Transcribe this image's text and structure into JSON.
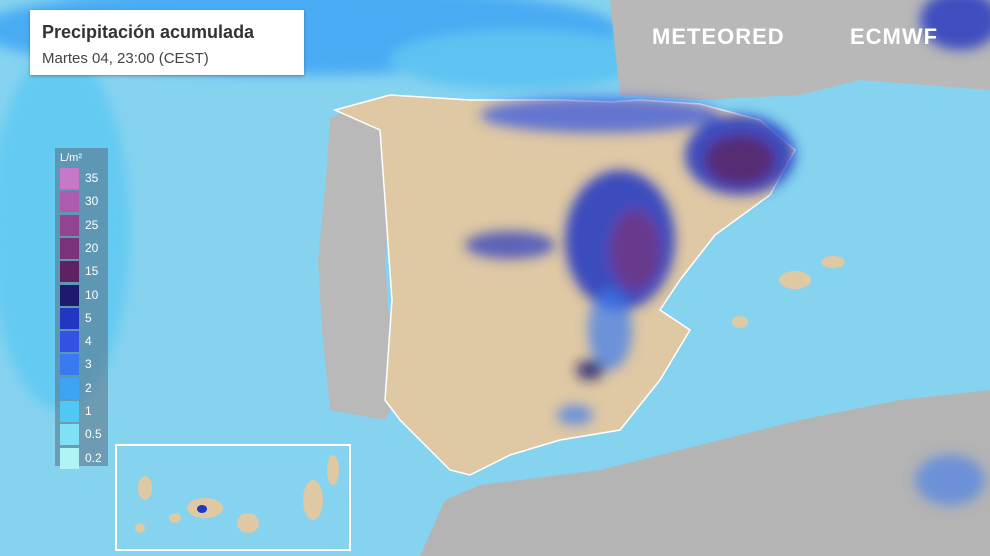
{
  "header": {
    "title": "Precipitación acumulada",
    "subtitle": "Martes 04, 23:00 (CEST)"
  },
  "legend": {
    "unit": "L/m²",
    "items": [
      {
        "label": "35",
        "color": "#c878c8"
      },
      {
        "label": "30",
        "color": "#ad5cad"
      },
      {
        "label": "25",
        "color": "#924392"
      },
      {
        "label": "20",
        "color": "#7a3279"
      },
      {
        "label": "15",
        "color": "#5e2262"
      },
      {
        "label": "10",
        "color": "#1d1b6e"
      },
      {
        "label": "5",
        "color": "#2236c2"
      },
      {
        "label": "4",
        "color": "#3152e2"
      },
      {
        "label": "3",
        "color": "#3a7af0"
      },
      {
        "label": "2",
        "color": "#3ca4f4"
      },
      {
        "label": "1",
        "color": "#4fc8f4"
      },
      {
        "label": "0.5",
        "color": "#80e0f4"
      },
      {
        "label": "0.2",
        "color": "#b0f4f6"
      }
    ]
  },
  "logos": {
    "meteored": "METEORED",
    "ecmwf": "ECMWF"
  }
}
